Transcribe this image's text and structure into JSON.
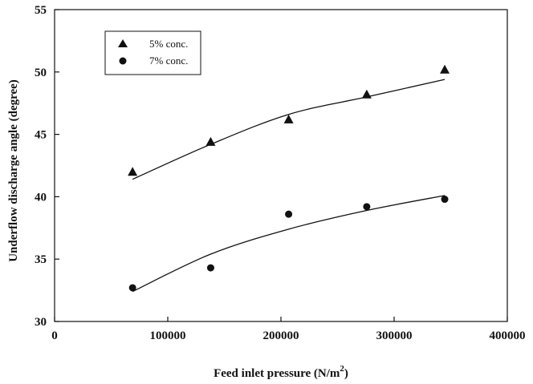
{
  "chart_data": {
    "type": "scatter",
    "xlabel": "Feed inlet pressure (N/m",
    "xlabel_sup": "2",
    "xlabel_end": ")",
    "ylabel": "Underflow discharge angle (degree)",
    "xlim": [
      0,
      400000
    ],
    "ylim": [
      30,
      55
    ],
    "xticks": [
      0,
      100000,
      200000,
      300000,
      400000
    ],
    "yticks": [
      30,
      35,
      40,
      45,
      50,
      55
    ],
    "xtick_labels": [
      "0",
      "100000",
      "200000",
      "300000",
      "400000"
    ],
    "ytick_labels": [
      "30",
      "35",
      "40",
      "45",
      "50",
      "55"
    ],
    "legend_placement": "top-left",
    "grid": false,
    "series": [
      {
        "name": "5% conc.",
        "marker": "triangle",
        "color": "#111111",
        "x": [
          68900,
          137900,
          206800,
          275800,
          344700
        ],
        "y": [
          42.0,
          44.4,
          46.2,
          48.2,
          50.2
        ],
        "fit_curve_y": [
          41.4,
          44.2,
          46.6,
          48.0,
          49.4
        ]
      },
      {
        "name": "7% conc.",
        "marker": "circle",
        "color": "#111111",
        "x": [
          68900,
          137900,
          206800,
          275800,
          344700
        ],
        "y": [
          32.7,
          34.3,
          38.6,
          39.2,
          39.8
        ],
        "fit_curve_y": [
          32.4,
          35.4,
          37.4,
          38.9,
          40.1
        ]
      }
    ]
  }
}
